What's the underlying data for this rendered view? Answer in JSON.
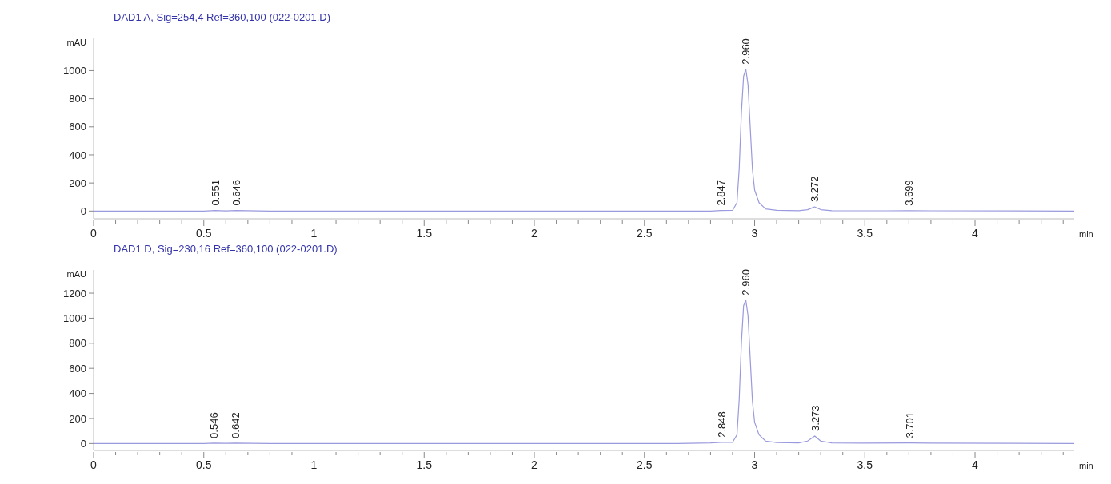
{
  "chart_data": [
    {
      "type": "line",
      "title": "DAD1 A, Sig=254,4 Ref=360,100 (022-0201.D)",
      "xlabel": "min",
      "ylabel": "mAU",
      "series": [
        {
          "color": "#9a9ade",
          "x": [
            0,
            0.5,
            0.551,
            0.6,
            0.646,
            0.8,
            2.8,
            2.847,
            2.9,
            2.92,
            2.93,
            2.94,
            2.95,
            2.96,
            2.97,
            2.98,
            2.99,
            3.0,
            3.02,
            3.05,
            3.1,
            3.2,
            3.24,
            3.272,
            3.3,
            3.35,
            3.6,
            3.699,
            3.8,
            4.45
          ],
          "values": [
            0,
            0,
            4,
            1,
            4,
            0,
            0,
            4,
            5,
            60,
            300,
            700,
            960,
            1010,
            900,
            600,
            300,
            150,
            60,
            15,
            5,
            3,
            10,
            30,
            10,
            3,
            2,
            3,
            2,
            0
          ]
        }
      ],
      "xlim": [
        0,
        4.45
      ],
      "ylim": [
        -55,
        1230
      ],
      "xticks": [
        0,
        {
          "value": 0.1,
          "label": null
        },
        {
          "value": 0.2,
          "label": null
        },
        {
          "value": 0.3,
          "label": null
        },
        {
          "value": 0.4,
          "label": null
        },
        0.5,
        {
          "value": 0.6,
          "label": null
        },
        {
          "value": 0.7,
          "label": null
        },
        {
          "value": 0.8,
          "label": null
        },
        {
          "value": 0.9,
          "label": null
        },
        1,
        {
          "value": 1.1,
          "label": null
        },
        {
          "value": 1.2,
          "label": null
        },
        {
          "value": 1.3,
          "label": null
        },
        {
          "value": 1.4,
          "label": null
        },
        1.5,
        {
          "value": 1.6,
          "label": null
        },
        {
          "value": 1.7,
          "label": null
        },
        {
          "value": 1.8,
          "label": null
        },
        {
          "value": 1.9,
          "label": null
        },
        2,
        {
          "value": 2.1,
          "label": null
        },
        {
          "value": 2.2,
          "label": null
        },
        {
          "value": 2.3,
          "label": null
        },
        {
          "value": 2.4,
          "label": null
        },
        2.5,
        {
          "value": 2.6,
          "label": null
        },
        {
          "value": 2.7,
          "label": null
        },
        {
          "value": 2.8,
          "label": null
        },
        {
          "value": 2.9,
          "label": null
        },
        3,
        {
          "value": 3.1,
          "label": null
        },
        {
          "value": 3.2,
          "label": null
        },
        {
          "value": 3.3,
          "label": null
        },
        {
          "value": 3.4,
          "label": null
        },
        3.5,
        {
          "value": 3.6,
          "label": null
        },
        {
          "value": 3.7,
          "label": null
        },
        {
          "value": 3.8,
          "label": null
        },
        {
          "value": 3.9,
          "label": null
        },
        4,
        {
          "value": 4.1,
          "label": null
        },
        {
          "value": 4.2,
          "label": null
        },
        {
          "value": 4.3,
          "label": null
        },
        {
          "value": 4.4,
          "label": null
        }
      ],
      "yticks": [
        0,
        200,
        400,
        600,
        800,
        1000
      ],
      "annotations": [
        {
          "text": "0.551",
          "x": 0.551,
          "y": 4
        },
        {
          "text": "0.646",
          "x": 0.646,
          "y": 4
        },
        {
          "text": "2.847",
          "x": 2.847,
          "y": 4
        },
        {
          "text": "2.960",
          "x": 2.96,
          "y": 1010
        },
        {
          "text": "3.272",
          "x": 3.272,
          "y": 30
        },
        {
          "text": "3.699",
          "x": 3.699,
          "y": 3
        }
      ]
    },
    {
      "type": "line",
      "title": "DAD1 D, Sig=230,16 Ref=360,100 (022-0201.D)",
      "xlabel": "min",
      "ylabel": "mAU",
      "series": [
        {
          "color": "#9a9ade",
          "x": [
            0,
            0.5,
            0.546,
            0.6,
            0.642,
            0.8,
            2.65,
            2.8,
            2.848,
            2.9,
            2.92,
            2.93,
            2.94,
            2.95,
            2.96,
            2.97,
            2.98,
            2.99,
            3.0,
            3.02,
            3.05,
            3.1,
            3.2,
            3.24,
            3.273,
            3.3,
            3.35,
            3.5,
            3.701,
            3.8,
            4.45
          ],
          "values": [
            0,
            0,
            3,
            1,
            3,
            0,
            0,
            5,
            10,
            10,
            70,
            350,
            800,
            1100,
            1145,
            1020,
            680,
            340,
            170,
            70,
            20,
            8,
            5,
            20,
            60,
            20,
            5,
            3,
            5,
            3,
            0
          ]
        }
      ],
      "xlim": [
        0,
        4.45
      ],
      "ylim": [
        -55,
        1385
      ],
      "xticks": [
        0,
        {
          "value": 0.1,
          "label": null
        },
        {
          "value": 0.2,
          "label": null
        },
        {
          "value": 0.3,
          "label": null
        },
        {
          "value": 0.4,
          "label": null
        },
        0.5,
        {
          "value": 0.6,
          "label": null
        },
        {
          "value": 0.7,
          "label": null
        },
        {
          "value": 0.8,
          "label": null
        },
        {
          "value": 0.9,
          "label": null
        },
        1,
        {
          "value": 1.1,
          "label": null
        },
        {
          "value": 1.2,
          "label": null
        },
        {
          "value": 1.3,
          "label": null
        },
        {
          "value": 1.4,
          "label": null
        },
        1.5,
        {
          "value": 1.6,
          "label": null
        },
        {
          "value": 1.7,
          "label": null
        },
        {
          "value": 1.8,
          "label": null
        },
        {
          "value": 1.9,
          "label": null
        },
        2,
        {
          "value": 2.1,
          "label": null
        },
        {
          "value": 2.2,
          "label": null
        },
        {
          "value": 2.3,
          "label": null
        },
        {
          "value": 2.4,
          "label": null
        },
        2.5,
        {
          "value": 2.6,
          "label": null
        },
        {
          "value": 2.7,
          "label": null
        },
        {
          "value": 2.8,
          "label": null
        },
        {
          "value": 2.9,
          "label": null
        },
        3,
        {
          "value": 3.1,
          "label": null
        },
        {
          "value": 3.2,
          "label": null
        },
        {
          "value": 3.3,
          "label": null
        },
        {
          "value": 3.4,
          "label": null
        },
        3.5,
        {
          "value": 3.6,
          "label": null
        },
        {
          "value": 3.7,
          "label": null
        },
        {
          "value": 3.8,
          "label": null
        },
        {
          "value": 3.9,
          "label": null
        },
        4,
        {
          "value": 4.1,
          "label": null
        },
        {
          "value": 4.2,
          "label": null
        },
        {
          "value": 4.3,
          "label": null
        },
        {
          "value": 4.4,
          "label": null
        }
      ],
      "yticks": [
        0,
        200,
        400,
        600,
        800,
        1000,
        1200
      ],
      "annotations": [
        {
          "text": "0.546",
          "x": 0.546,
          "y": 3
        },
        {
          "text": "0.642",
          "x": 0.642,
          "y": 3
        },
        {
          "text": "2.848",
          "x": 2.848,
          "y": 10
        },
        {
          "text": "2.960",
          "x": 2.96,
          "y": 1145
        },
        {
          "text": "3.273",
          "x": 3.273,
          "y": 60
        },
        {
          "text": "3.701",
          "x": 3.701,
          "y": 5
        }
      ]
    }
  ]
}
